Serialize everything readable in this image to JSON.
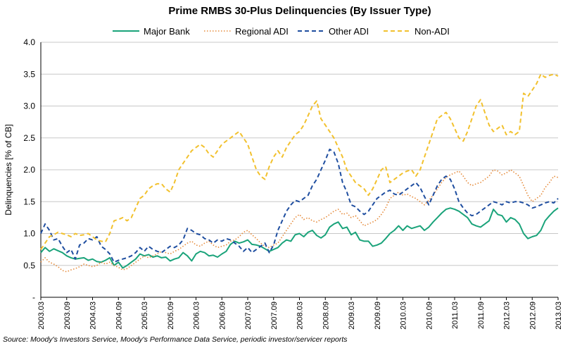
{
  "chart_data": {
    "type": "line",
    "title": "Prime RMBS 30-Plus Delinquencies (By Issuer Type)",
    "ylabel": "Delinquencies  [% of CB]",
    "xlabel": "",
    "ylim": [
      0,
      4.0
    ],
    "ytick_labels": [
      "-",
      "0.5",
      "1.0",
      "1.5",
      "2.0",
      "2.5",
      "3.0",
      "3.5",
      "4.0"
    ],
    "x_tick_labels": [
      "2003.03",
      "2003.09",
      "2004.03",
      "2004.09",
      "2005.03",
      "2005.09",
      "2006.03",
      "2006.09",
      "2007.03",
      "2007.09",
      "2008.03",
      "2008.09",
      "2009.03",
      "2009.09",
      "2010.03",
      "2010.09",
      "2011.03",
      "2011.09",
      "2012.03",
      "2012.09",
      "2013.03"
    ],
    "grid": true,
    "legend_position": "top",
    "series": [
      {
        "name": "Major Bank",
        "color": "#1aa37a",
        "style": "solid",
        "values": [
          0.7,
          0.78,
          0.72,
          0.76,
          0.73,
          0.7,
          0.65,
          0.62,
          0.6,
          0.61,
          0.62,
          0.58,
          0.6,
          0.56,
          0.55,
          0.58,
          0.62,
          0.5,
          0.55,
          0.46,
          0.5,
          0.55,
          0.6,
          0.68,
          0.65,
          0.67,
          0.63,
          0.65,
          0.62,
          0.63,
          0.57,
          0.6,
          0.62,
          0.7,
          0.65,
          0.57,
          0.68,
          0.72,
          0.7,
          0.65,
          0.66,
          0.63,
          0.68,
          0.72,
          0.83,
          0.88,
          0.85,
          0.87,
          0.9,
          0.83,
          0.82,
          0.8,
          0.76,
          0.72,
          0.75,
          0.78,
          0.85,
          0.9,
          0.88,
          0.98,
          1.0,
          0.95,
          1.02,
          1.05,
          0.97,
          0.93,
          0.98,
          1.1,
          1.15,
          1.18,
          1.08,
          1.1,
          0.98,
          1.02,
          0.9,
          0.88,
          0.88,
          0.8,
          0.82,
          0.85,
          0.92,
          1.0,
          1.05,
          1.12,
          1.05,
          1.12,
          1.08,
          1.1,
          1.12,
          1.05,
          1.1,
          1.18,
          1.25,
          1.32,
          1.38,
          1.4,
          1.38,
          1.35,
          1.3,
          1.25,
          1.15,
          1.12,
          1.1,
          1.15,
          1.2,
          1.38,
          1.3,
          1.28,
          1.18,
          1.25,
          1.22,
          1.15,
          1.0,
          0.92,
          0.95,
          0.97,
          1.05,
          1.2,
          1.28,
          1.35,
          1.4
        ]
      },
      {
        "name": "Regional ADI",
        "color": "#e58a3a",
        "style": "dotted",
        "values": [
          0.55,
          0.62,
          0.55,
          0.52,
          0.48,
          0.42,
          0.4,
          0.43,
          0.45,
          0.48,
          0.52,
          0.5,
          0.48,
          0.5,
          0.55,
          0.52,
          0.55,
          0.5,
          0.47,
          0.43,
          0.45,
          0.5,
          0.55,
          0.6,
          0.65,
          0.62,
          0.65,
          0.68,
          0.72,
          0.7,
          0.68,
          0.72,
          0.75,
          0.8,
          0.85,
          0.88,
          0.82,
          0.8,
          0.85,
          0.88,
          0.82,
          0.78,
          0.8,
          0.82,
          0.88,
          0.9,
          0.95,
          1.02,
          1.05,
          0.98,
          0.92,
          0.85,
          0.8,
          0.78,
          0.82,
          0.85,
          0.95,
          1.05,
          1.15,
          1.25,
          1.3,
          1.22,
          1.25,
          1.2,
          1.18,
          1.22,
          1.25,
          1.3,
          1.35,
          1.38,
          1.3,
          1.32,
          1.25,
          1.28,
          1.2,
          1.12,
          1.15,
          1.18,
          1.22,
          1.3,
          1.4,
          1.55,
          1.6,
          1.65,
          1.6,
          1.62,
          1.58,
          1.55,
          1.5,
          1.45,
          1.52,
          1.6,
          1.7,
          1.8,
          1.88,
          1.92,
          1.95,
          1.98,
          1.9,
          1.8,
          1.75,
          1.78,
          1.8,
          1.85,
          1.9,
          2.0,
          1.98,
          1.92,
          1.95,
          2.0,
          1.95,
          1.9,
          1.75,
          1.6,
          1.5,
          1.55,
          1.6,
          1.72,
          1.8,
          1.9,
          1.88
        ]
      },
      {
        "name": "Other ADI",
        "color": "#1f4ea0",
        "style": "dashed",
        "values": [
          1.0,
          1.15,
          1.05,
          0.9,
          0.92,
          0.8,
          0.7,
          0.75,
          0.6,
          0.82,
          0.85,
          0.92,
          0.9,
          0.95,
          0.8,
          0.75,
          0.68,
          0.55,
          0.58,
          0.6,
          0.62,
          0.65,
          0.7,
          0.78,
          0.72,
          0.8,
          0.75,
          0.72,
          0.7,
          0.75,
          0.8,
          0.78,
          0.82,
          0.9,
          1.08,
          1.05,
          1.0,
          0.98,
          0.92,
          0.9,
          0.85,
          0.9,
          0.88,
          0.92,
          0.9,
          0.85,
          0.8,
          0.72,
          0.78,
          0.7,
          0.75,
          0.8,
          0.85,
          0.7,
          0.82,
          1.05,
          1.2,
          1.35,
          1.45,
          1.52,
          1.5,
          1.55,
          1.6,
          1.75,
          1.85,
          2.0,
          2.15,
          2.32,
          2.28,
          2.1,
          1.8,
          1.65,
          1.45,
          1.42,
          1.35,
          1.3,
          1.35,
          1.45,
          1.55,
          1.6,
          1.65,
          1.68,
          1.62,
          1.6,
          1.65,
          1.7,
          1.75,
          1.8,
          1.72,
          1.58,
          1.45,
          1.6,
          1.75,
          1.85,
          1.9,
          1.85,
          1.7,
          1.5,
          1.4,
          1.32,
          1.28,
          1.3,
          1.35,
          1.4,
          1.45,
          1.5,
          1.48,
          1.45,
          1.5,
          1.48,
          1.5,
          1.5,
          1.48,
          1.45,
          1.4,
          1.42,
          1.45,
          1.48,
          1.5,
          1.48,
          1.55
        ]
      },
      {
        "name": "Non-ADI",
        "color": "#f2c12e",
        "style": "dashed",
        "values": [
          0.75,
          0.85,
          0.95,
          0.98,
          1.02,
          1.0,
          0.98,
          0.95,
          1.0,
          0.97,
          0.98,
          1.0,
          0.95,
          0.9,
          0.88,
          0.87,
          1.0,
          1.2,
          1.22,
          1.25,
          1.2,
          1.25,
          1.4,
          1.55,
          1.6,
          1.7,
          1.75,
          1.78,
          1.78,
          1.7,
          1.65,
          1.8,
          2.0,
          2.1,
          2.2,
          2.3,
          2.35,
          2.4,
          2.35,
          2.25,
          2.2,
          2.3,
          2.4,
          2.45,
          2.5,
          2.55,
          2.6,
          2.5,
          2.4,
          2.2,
          2.0,
          1.9,
          1.85,
          2.05,
          2.2,
          2.3,
          2.2,
          2.35,
          2.45,
          2.55,
          2.6,
          2.7,
          2.85,
          3.0,
          3.08,
          2.8,
          2.7,
          2.6,
          2.5,
          2.35,
          2.2,
          2.0,
          1.9,
          1.8,
          1.75,
          1.7,
          1.6,
          1.7,
          1.85,
          2.0,
          2.05,
          1.8,
          1.85,
          1.9,
          1.95,
          1.98,
          2.0,
          1.9,
          2.0,
          2.2,
          2.4,
          2.6,
          2.8,
          2.85,
          2.9,
          2.8,
          2.65,
          2.5,
          2.45,
          2.6,
          2.8,
          3.0,
          3.1,
          2.9,
          2.7,
          2.6,
          2.65,
          2.7,
          2.55,
          2.6,
          2.55,
          2.6,
          3.2,
          3.15,
          3.25,
          3.35,
          3.5,
          3.45,
          3.48,
          3.5,
          3.47
        ]
      }
    ]
  },
  "source_note": "Source: Moody's Investors Service, Moody's Performance Data Service, periodic investor/servicer reports"
}
